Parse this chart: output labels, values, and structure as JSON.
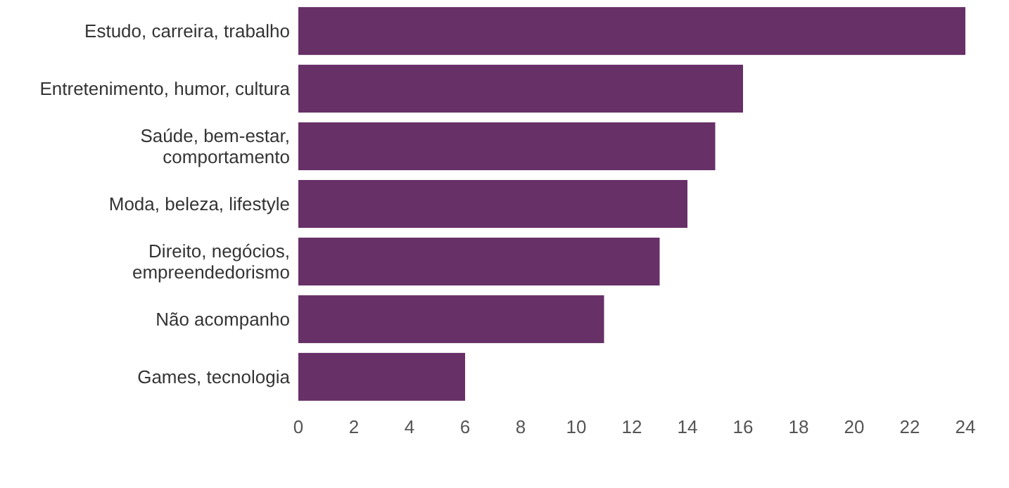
{
  "chart_data": {
    "type": "bar",
    "orientation": "horizontal",
    "categories": [
      "Estudo, carreira, trabalho",
      "Entretenimento, humor, cultura",
      "Saúde, bem-estar, comportamento",
      "Moda, beleza, lifestyle",
      "Direito, negócios, empreendedorismo",
      "Não acompanho",
      "Games, tecnologia"
    ],
    "values": [
      24,
      16,
      15,
      14,
      13,
      11,
      6
    ],
    "color": "#673067",
    "xlim": [
      0,
      24
    ],
    "xticks": [
      0,
      2,
      4,
      6,
      8,
      10,
      12,
      14,
      16,
      18,
      20,
      22,
      24
    ],
    "grid": false
  }
}
